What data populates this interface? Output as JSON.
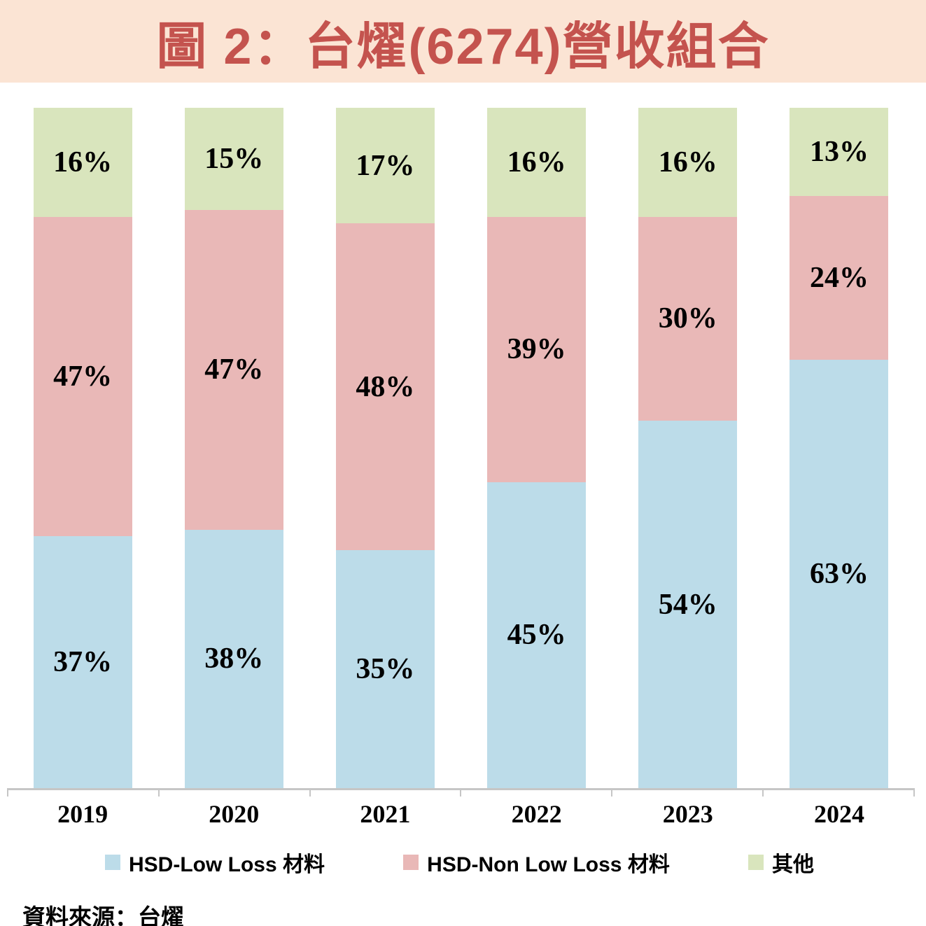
{
  "title": "圖 2：台燿(6274)營收組合",
  "source": "資料來源：台燿",
  "colors": {
    "title_background": "#FBE4D4",
    "title_text": "#C4534E",
    "axis_line": "#C6C6C6",
    "value_label_text": "#000000"
  },
  "chart_data": {
    "type": "bar",
    "stacked": true,
    "title": "圖 2：台燿(6274)營收組合",
    "categories": [
      "2019",
      "2020",
      "2021",
      "2022",
      "2023",
      "2024"
    ],
    "series": [
      {
        "name": "HSD-Low Loss 材料",
        "color": "#BCDCE9",
        "values": [
          37,
          38,
          35,
          45,
          54,
          63
        ]
      },
      {
        "name": "HSD-Non Low Loss 材料",
        "color": "#E9B8B7",
        "values": [
          47,
          47,
          48,
          39,
          30,
          24
        ]
      },
      {
        "name": "其他",
        "color": "#D9E5BD",
        "values": [
          16,
          15,
          17,
          16,
          16,
          13
        ]
      }
    ],
    "value_suffix": "%",
    "xlabel": "",
    "ylabel": "",
    "ylim": [
      0,
      100
    ],
    "grid": false,
    "legend_position": "bottom"
  }
}
